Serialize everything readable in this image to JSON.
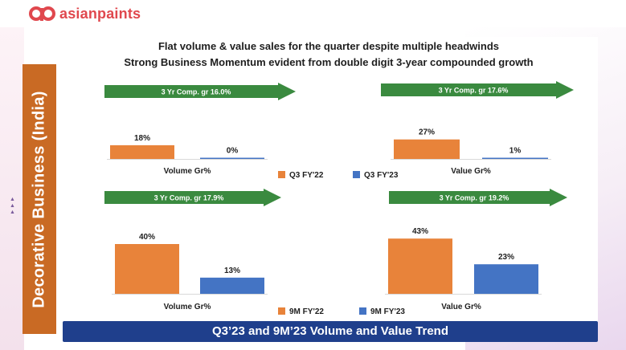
{
  "brand": {
    "name": "asianpaints",
    "color": "#e0484e"
  },
  "sidebar": {
    "label": "Decorative Business (India)",
    "color": "#c96a24"
  },
  "headline": {
    "line1": "Flat volume & value sales for the quarter despite multiple headwinds",
    "line2": "Strong Business Momentum evident from double digit 3-year compounded growth"
  },
  "footer": {
    "title": "Q3’23 and 9M’23 Volume and Value Trend",
    "color": "#1f3f8c"
  },
  "colors": {
    "orange": "#e8833a",
    "blue": "#4474c4",
    "arrow": "#3a8a3f"
  },
  "chart_data": [
    {
      "type": "bar",
      "xlabel": "Volume Gr%",
      "arrow_text": "3 Yr Comp. gr 16.0%",
      "series": [
        {
          "name": "Q3 FY'22",
          "values": [
            18
          ],
          "labels": [
            "18%"
          ]
        },
        {
          "name": "Q3 FY'23",
          "values": [
            0
          ],
          "labels": [
            "0%"
          ]
        }
      ]
    },
    {
      "type": "bar",
      "xlabel": "Value Gr%",
      "arrow_text": "3 Yr Comp. gr 17.6%",
      "series": [
        {
          "name": "Q3 FY'22",
          "values": [
            27
          ],
          "labels": [
            "27%"
          ]
        },
        {
          "name": "Q3 FY'23",
          "values": [
            1
          ],
          "labels": [
            "1%"
          ]
        }
      ]
    },
    {
      "type": "bar",
      "xlabel": "Volume Gr%",
      "arrow_text": "3 Yr Comp. gr 17.9%",
      "series": [
        {
          "name": "9M FY'22",
          "values": [
            40
          ],
          "labels": [
            "40%"
          ]
        },
        {
          "name": "9M FY'23",
          "values": [
            13
          ],
          "labels": [
            "13%"
          ]
        }
      ]
    },
    {
      "type": "bar",
      "xlabel": "Value Gr%",
      "arrow_text": "3 Yr Comp. gr 19.2%",
      "series": [
        {
          "name": "9M FY'22",
          "values": [
            43
          ],
          "labels": [
            "43%"
          ]
        },
        {
          "name": "9M FY'23",
          "values": [
            23
          ],
          "labels": [
            "23%"
          ]
        }
      ]
    }
  ],
  "legends": [
    {
      "items": [
        "Q3 FY'22",
        "Q3 FY'23"
      ]
    },
    {
      "items": [
        "9M FY'22",
        "9M FY'23"
      ]
    }
  ]
}
